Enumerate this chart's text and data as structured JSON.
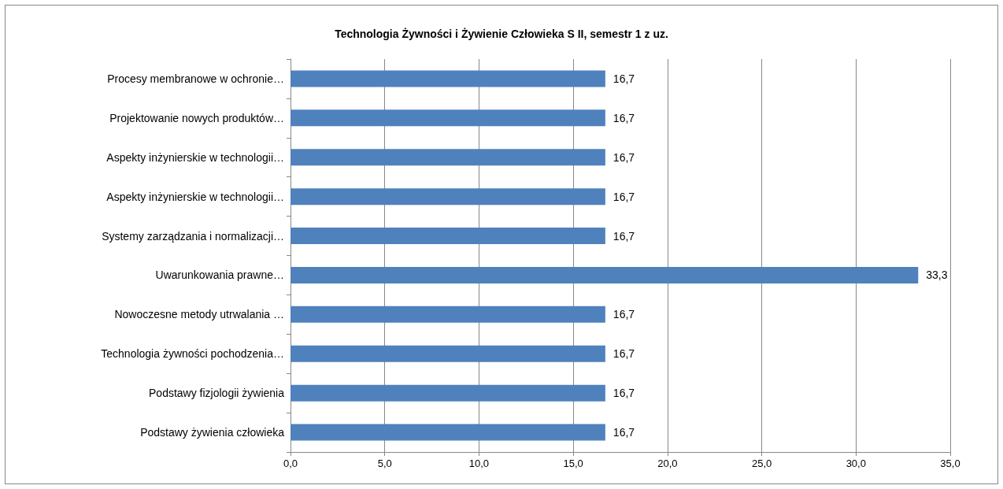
{
  "chart_data": {
    "type": "bar",
    "orientation": "horizontal",
    "title": "Technologia Żywności i Żywienie Człowieka S II, semestr 1 z uz.",
    "categories": [
      "Procesy membranowe w ochronie…",
      "Projektowanie nowych produktów…",
      "Aspekty inżynierskie w technologii…",
      "Aspekty inżynierskie w technologii…",
      "Systemy zarządzania i normalizacji…",
      "Uwarunkowania prawne…",
      "Nowoczesne metody utrwalania …",
      "Technologia żywności pochodzenia…",
      "Podstawy fizjologii żywienia",
      "Podstawy żywienia człowieka"
    ],
    "values": [
      16.7,
      16.7,
      16.7,
      16.7,
      16.7,
      33.3,
      16.7,
      16.7,
      16.7,
      16.7
    ],
    "value_labels": [
      "16,7",
      "16,7",
      "16,7",
      "16,7",
      "16,7",
      "33,3",
      "16,7",
      "16,7",
      "16,7",
      "16,7"
    ],
    "color": "#4f81bd",
    "xlim": [
      0,
      35
    ],
    "xticks": [
      {
        "value": 0,
        "label": "0,0"
      },
      {
        "value": 5,
        "label": "5,0"
      },
      {
        "value": 10,
        "label": "10,0"
      },
      {
        "value": 15,
        "label": "15,0"
      },
      {
        "value": 20,
        "label": "20,0"
      },
      {
        "value": 25,
        "label": "25,0"
      },
      {
        "value": 30,
        "label": "30,0"
      },
      {
        "value": 35,
        "label": "35,0"
      }
    ],
    "grid": "x"
  }
}
